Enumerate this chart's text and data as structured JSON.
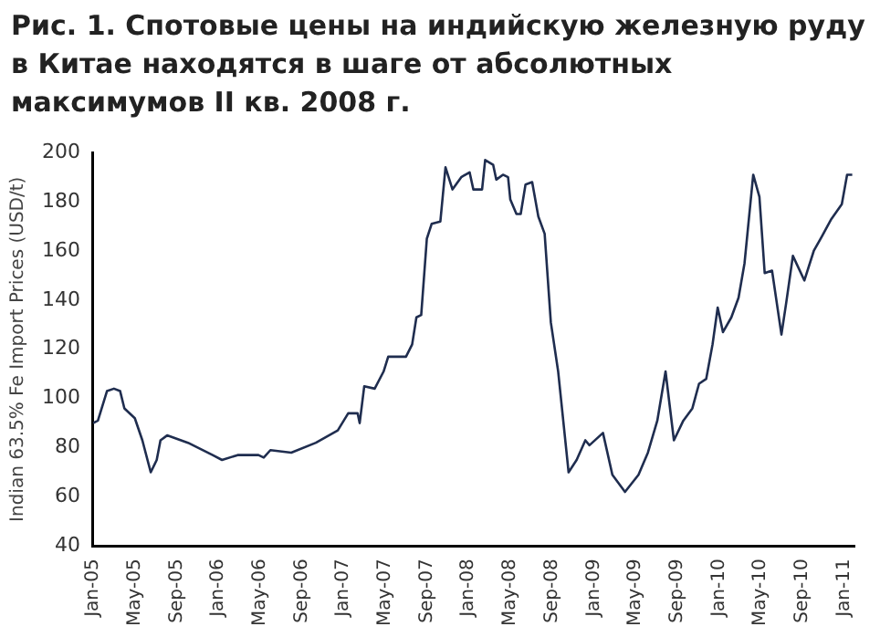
{
  "chart_data": {
    "type": "line",
    "title": "Рис. 1. Спотовые цены на индийскую железную руду в Китае находятся в шаге от абсолютных максимумов II кв. 2008 г.",
    "ylabel": "Indian 63.5% Fe Import Prices (USD/t)",
    "x": [
      "2005-01-01",
      "2005-01-15",
      "2005-02-11",
      "2005-03-01",
      "2005-03-19",
      "2005-04-01",
      "2005-05-01",
      "2005-05-23",
      "2005-06-17",
      "2005-07-04",
      "2005-07-15",
      "2005-08-04",
      "2005-10-04",
      "2005-12-15",
      "2006-01-12",
      "2006-02-27",
      "2006-04-27",
      "2006-05-12",
      "2006-06-01",
      "2006-08-01",
      "2006-10-12",
      "2006-12-15",
      "2007-01-15",
      "2007-02-12",
      "2007-02-18",
      "2007-03-01",
      "2007-04-01",
      "2007-04-27",
      "2007-05-10",
      "2007-07-01",
      "2007-07-19",
      "2007-08-01",
      "2007-08-15",
      "2007-09-01",
      "2007-09-15",
      "2007-10-10",
      "2007-10-25",
      "2007-11-15",
      "2007-12-10",
      "2008-01-04",
      "2008-01-15",
      "2008-02-10",
      "2008-02-19",
      "2008-03-12",
      "2008-03-21",
      "2008-04-10",
      "2008-04-25",
      "2008-05-01",
      "2008-05-19",
      "2008-06-01",
      "2008-06-15",
      "2008-07-04",
      "2008-07-22",
      "2008-08-10",
      "2008-08-28",
      "2008-09-19",
      "2008-10-19",
      "2008-11-12",
      "2008-12-07",
      "2008-12-19",
      "2009-01-28",
      "2009-02-25",
      "2009-04-01",
      "2009-05-10",
      "2009-06-07",
      "2009-07-04",
      "2009-07-28",
      "2009-08-22",
      "2009-09-19",
      "2009-10-15",
      "2009-11-04",
      "2009-11-25",
      "2009-12-13",
      "2009-12-28",
      "2010-01-13",
      "2010-02-07",
      "2010-02-28",
      "2010-03-15",
      "2010-04-10",
      "2010-04-28",
      "2010-05-13",
      "2010-06-04",
      "2010-07-01",
      "2010-07-15",
      "2010-08-04",
      "2010-09-07",
      "2010-10-04",
      "2010-10-28",
      "2010-11-25",
      "2010-12-25",
      "2011-01-10",
      "2011-01-25"
    ],
    "series": [
      {
        "color": "#1f2d4f",
        "values": [
          90,
          91,
          103,
          104,
          103,
          96,
          92,
          83,
          70,
          75,
          83,
          85,
          82,
          77,
          75,
          77,
          77,
          76,
          79,
          78,
          82,
          87,
          94,
          94,
          90,
          105,
          104,
          111,
          117,
          117,
          122,
          133,
          134,
          165,
          171,
          172,
          194,
          185,
          190,
          192,
          185,
          185,
          197,
          195,
          189,
          191,
          190,
          181,
          175,
          175,
          187,
          188,
          174,
          167,
          131,
          111,
          70,
          75,
          83,
          81,
          86,
          69,
          62,
          69,
          78,
          91,
          111,
          83,
          91,
          96,
          106,
          108,
          122,
          137,
          127,
          133,
          141,
          155,
          191,
          182,
          151,
          152,
          126,
          139,
          158,
          148,
          160,
          166,
          173,
          179,
          191,
          191
        ]
      }
    ],
    "xlim": [
      "2005-01-01",
      "2011-02-01"
    ],
    "xticks": [
      {
        "value": "2005-01",
        "label": "Jan-05"
      },
      {
        "value": "2005-05",
        "label": "May-05"
      },
      {
        "value": "2005-09",
        "label": "Sep-05"
      },
      {
        "value": "2006-01",
        "label": "Jan-06"
      },
      {
        "value": "2006-05",
        "label": "May-06"
      },
      {
        "value": "2006-09",
        "label": "Sep-06"
      },
      {
        "value": "2007-01",
        "label": "Jan-07"
      },
      {
        "value": "2007-05",
        "label": "May-07"
      },
      {
        "value": "2007-09",
        "label": "Sep-07"
      },
      {
        "value": "2008-01",
        "label": "Jan-08"
      },
      {
        "value": "2008-05",
        "label": "May-08"
      },
      {
        "value": "2008-09",
        "label": "Sep-08"
      },
      {
        "value": "2009-01",
        "label": "Jan-09"
      },
      {
        "value": "2009-05",
        "label": "May-09"
      },
      {
        "value": "2009-09",
        "label": "Sep-09"
      },
      {
        "value": "2010-01",
        "label": "Jan-10"
      },
      {
        "value": "2010-05",
        "label": "May-10"
      },
      {
        "value": "2010-09",
        "label": "Sep-10"
      },
      {
        "value": "2011-01",
        "label": "Jan-11"
      }
    ],
    "ylim": [
      40,
      200
    ],
    "yticks": [
      40,
      60,
      80,
      100,
      120,
      140,
      160,
      180,
      200
    ],
    "grid": false,
    "legend": false,
    "marker": "none",
    "line_style": "solid"
  }
}
